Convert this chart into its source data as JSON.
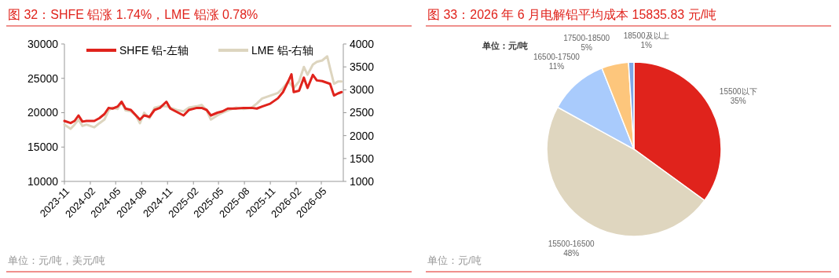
{
  "chart_data": [
    {
      "type": "line",
      "title": "图 32：SHFE 铝涨 1.74%，LME 铝涨 0.78%",
      "legend": "top",
      "line_style": "solid",
      "xlim": [
        "2023-11-01",
        "2026-07-18"
      ],
      "xticks": [
        {
          "value": "2023-11-01",
          "label": "2023-11"
        },
        {
          "value": "2024-02-01",
          "label": "2024-02"
        },
        {
          "value": "2024-05-01",
          "label": "2024-05"
        },
        {
          "value": "2024-08-01",
          "label": "2024-08"
        },
        {
          "value": "2024-11-01",
          "label": "2024-11"
        },
        {
          "value": "2025-02-01",
          "label": "2025-02"
        },
        {
          "value": "2025-05-01",
          "label": "2025-05"
        },
        {
          "value": "2025-08-01",
          "label": "2025-08"
        },
        {
          "value": "2025-11-01",
          "label": "2025-11"
        },
        {
          "value": "2026-02-01",
          "label": "2026-02"
        },
        {
          "value": "2026-05-01",
          "label": "2026-05"
        }
      ],
      "ylim": [
        10000,
        30000
      ],
      "yticks": [
        10000,
        15000,
        20000,
        25000,
        30000
      ],
      "y2lim": [
        1000,
        4000
      ],
      "y2ticks": [
        1000,
        1500,
        2000,
        2500,
        3000,
        3500,
        4000
      ],
      "series": [
        {
          "name": "SHFE 铝-左轴",
          "color": "#e0231c",
          "x": [
            "2023-11-01",
            "2023-11-23",
            "2023-12-07",
            "2023-12-21",
            "2024-01-04",
            "2024-01-18",
            "2024-02-15",
            "2024-03-04",
            "2024-03-22",
            "2024-04-06",
            "2024-04-20",
            "2024-05-08",
            "2024-05-22",
            "2024-06-05",
            "2024-06-24",
            "2024-07-12",
            "2024-07-26",
            "2024-08-10",
            "2024-08-29",
            "2024-09-16",
            "2024-10-05",
            "2024-10-28",
            "2024-11-11",
            "2024-12-09",
            "2024-12-28",
            "2025-01-16",
            "2025-02-13",
            "2025-03-02",
            "2025-03-20",
            "2025-04-04",
            "2025-04-27",
            "2025-05-15",
            "2025-06-03",
            "2025-07-01",
            "2025-07-29",
            "2025-08-26",
            "2025-09-14",
            "2025-10-03",
            "2025-10-31",
            "2025-11-28",
            "2025-12-16",
            "2026-01-04",
            "2026-01-15",
            "2026-01-23",
            "2026-02-11",
            "2026-02-28",
            "2026-03-13",
            "2026-04-01",
            "2026-04-15",
            "2026-05-04",
            "2026-06-01",
            "2026-06-15",
            "2026-06-29",
            "2026-07-12"
          ],
          "values": [
            18800,
            18500,
            18800,
            19600,
            18700,
            18800,
            18800,
            19200,
            19800,
            20700,
            20600,
            20900,
            21600,
            20600,
            20400,
            19600,
            19000,
            19600,
            19400,
            20400,
            20700,
            21600,
            20600,
            20000,
            19600,
            20400,
            20700,
            20700,
            20400,
            19600,
            20000,
            20200,
            20600,
            20600,
            20700,
            20700,
            20600,
            20900,
            21300,
            22100,
            23000,
            24600,
            25600,
            23000,
            23200,
            25100,
            23600,
            25500,
            24700,
            24600,
            24200,
            22500,
            22800,
            23000
          ]
        },
        {
          "name": "LME 铝-右轴",
          "color": "#ddd5bf",
          "axis": "y2",
          "x": [
            "2023-11-01",
            "2023-11-23",
            "2023-12-07",
            "2023-12-21",
            "2024-01-04",
            "2024-01-18",
            "2024-02-15",
            "2024-03-04",
            "2024-03-22",
            "2024-04-06",
            "2024-04-20",
            "2024-05-08",
            "2024-05-22",
            "2024-06-05",
            "2024-06-24",
            "2024-07-12",
            "2024-07-26",
            "2024-08-10",
            "2024-08-29",
            "2024-09-16",
            "2024-10-05",
            "2024-10-28",
            "2024-11-11",
            "2024-12-09",
            "2024-12-28",
            "2025-01-16",
            "2025-02-13",
            "2025-03-02",
            "2025-03-20",
            "2025-04-04",
            "2025-04-27",
            "2025-05-15",
            "2025-06-03",
            "2025-07-01",
            "2025-07-29",
            "2025-08-26",
            "2025-09-14",
            "2025-10-03",
            "2025-10-31",
            "2025-11-28",
            "2025-12-16",
            "2026-01-04",
            "2026-01-15",
            "2026-01-23",
            "2026-02-11",
            "2026-02-28",
            "2026-03-13",
            "2026-04-01",
            "2026-04-15",
            "2026-05-04",
            "2026-05-22",
            "2026-06-01",
            "2026-06-15",
            "2026-06-29",
            "2026-07-12"
          ],
          "values": [
            2240,
            2150,
            2240,
            2350,
            2210,
            2240,
            2180,
            2270,
            2350,
            2550,
            2610,
            2580,
            2730,
            2550,
            2530,
            2440,
            2270,
            2500,
            2380,
            2610,
            2640,
            2640,
            2610,
            2550,
            2530,
            2610,
            2640,
            2670,
            2550,
            2350,
            2440,
            2500,
            2550,
            2610,
            2580,
            2610,
            2700,
            2810,
            2870,
            2930,
            3040,
            3180,
            3100,
            3040,
            3180,
            3500,
            3330,
            3550,
            3610,
            3640,
            3730,
            3470,
            3130,
            3180,
            3180
          ]
        }
      ],
      "annotations": [
        "单位：元/吨，美元/吨"
      ]
    },
    {
      "type": "pie",
      "title": "图 33：2026 年 6 月电解铝平均成本 15835.83 元/吨",
      "categories": [
        "15500以下",
        "15500-16500",
        "16500-17500",
        "17500-18500",
        "18500及以上"
      ],
      "values": [
        35,
        48,
        11,
        5,
        1
      ],
      "value_labels": [
        "35%",
        "48%",
        "11%",
        "5%",
        "1%"
      ],
      "colors": [
        "#e0231c",
        "#dfd6bf",
        "#a9cbfc",
        "#fdc67c",
        "#7fa6e6"
      ],
      "annotations": [
        "单位：元/吨",
        "单位：元/吨"
      ]
    }
  ]
}
